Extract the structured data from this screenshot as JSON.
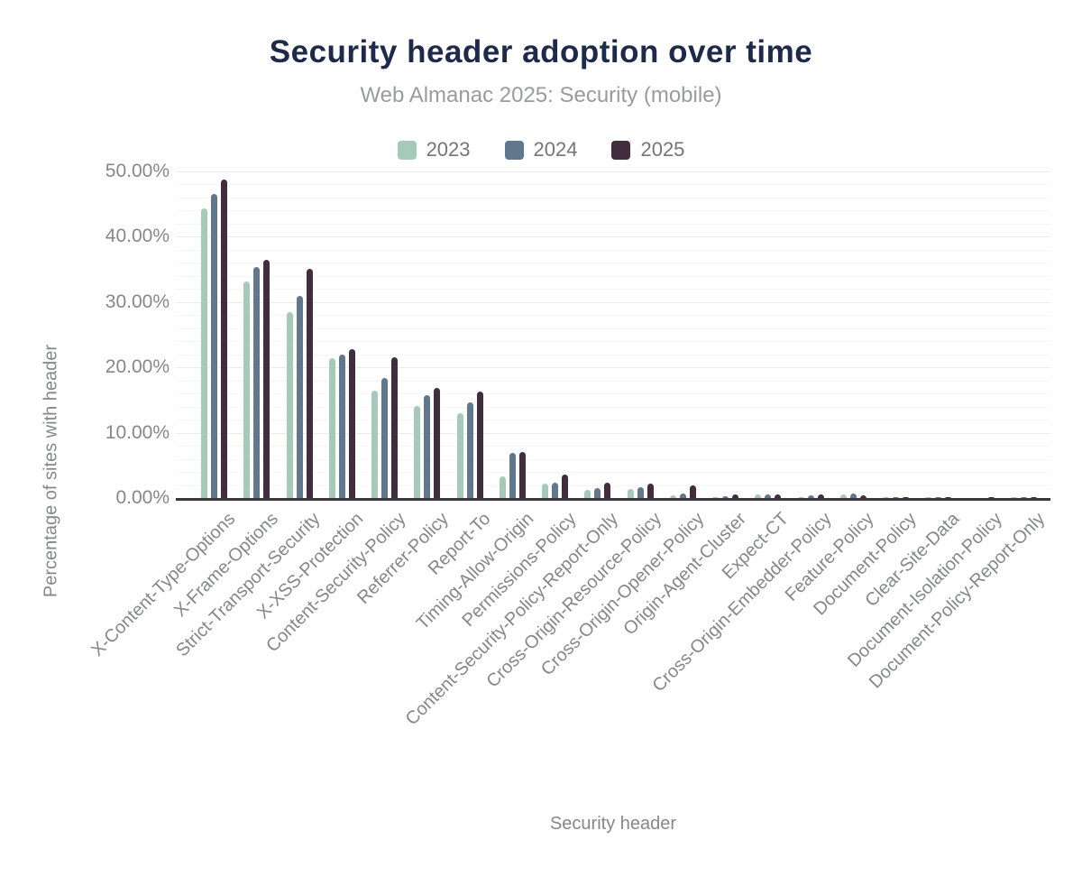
{
  "header": {
    "title": "Security header adoption over time",
    "subtitle": "Web Almanac 2025: Security (mobile)"
  },
  "chart_data": {
    "type": "bar",
    "title": "Security header adoption over time",
    "subtitle": "Web Almanac 2025: Security (mobile)",
    "xlabel": "Security header",
    "ylabel": "Percentage of sites with header",
    "ylim": [
      0,
      50
    ],
    "y_major_step": 10,
    "y_minor_step": 2,
    "grid": "on",
    "legend_position": "top",
    "y_ticks": [
      "0.00%",
      "10.00%",
      "20.00%",
      "30.00%",
      "40.00%",
      "50.00%"
    ],
    "categories": [
      "X-Content-Type-Options",
      "X-Frame-Options",
      "Strict-Transport-Security",
      "X-XSS-Protection",
      "Content-Security-Policy",
      "Referrer-Policy",
      "Report-To",
      "Timing-Allow-Origin",
      "Permissions-Policy",
      "Content-Security-Policy-Report-Only",
      "Cross-Origin-Resource-Policy",
      "Cross-Origin-Opener-Policy",
      "Origin-Agent-Cluster",
      "Expect-CT",
      "Cross-Origin-Embedder-Policy",
      "Feature-Policy",
      "Document-Policy",
      "Clear-Site-Data",
      "Document-Isolation-Policy",
      "Document-Policy-Report-Only"
    ],
    "series": [
      {
        "name": "2023",
        "color": "#a6cab8",
        "values": [
          44.3,
          33.2,
          28.4,
          21.4,
          16.4,
          14.1,
          13.0,
          3.3,
          2.2,
          1.3,
          1.4,
          0.4,
          0.1,
          0.6,
          0.1,
          0.6,
          0.1,
          0.1,
          0.0,
          0.1
        ]
      },
      {
        "name": "2024",
        "color": "#61778e",
        "values": [
          46.5,
          35.3,
          31.0,
          22.0,
          18.4,
          15.7,
          14.7,
          6.9,
          2.4,
          1.5,
          1.7,
          0.7,
          0.3,
          0.6,
          0.4,
          0.7,
          0.1,
          0.1,
          0.0,
          0.1
        ]
      },
      {
        "name": "2025",
        "color": "#412d3e",
        "values": [
          48.7,
          36.5,
          35.1,
          22.8,
          21.6,
          16.9,
          16.3,
          7.1,
          3.6,
          2.4,
          2.2,
          1.9,
          0.6,
          0.5,
          0.6,
          0.4,
          0.1,
          0.1,
          0.1,
          0.1
        ]
      }
    ]
  }
}
